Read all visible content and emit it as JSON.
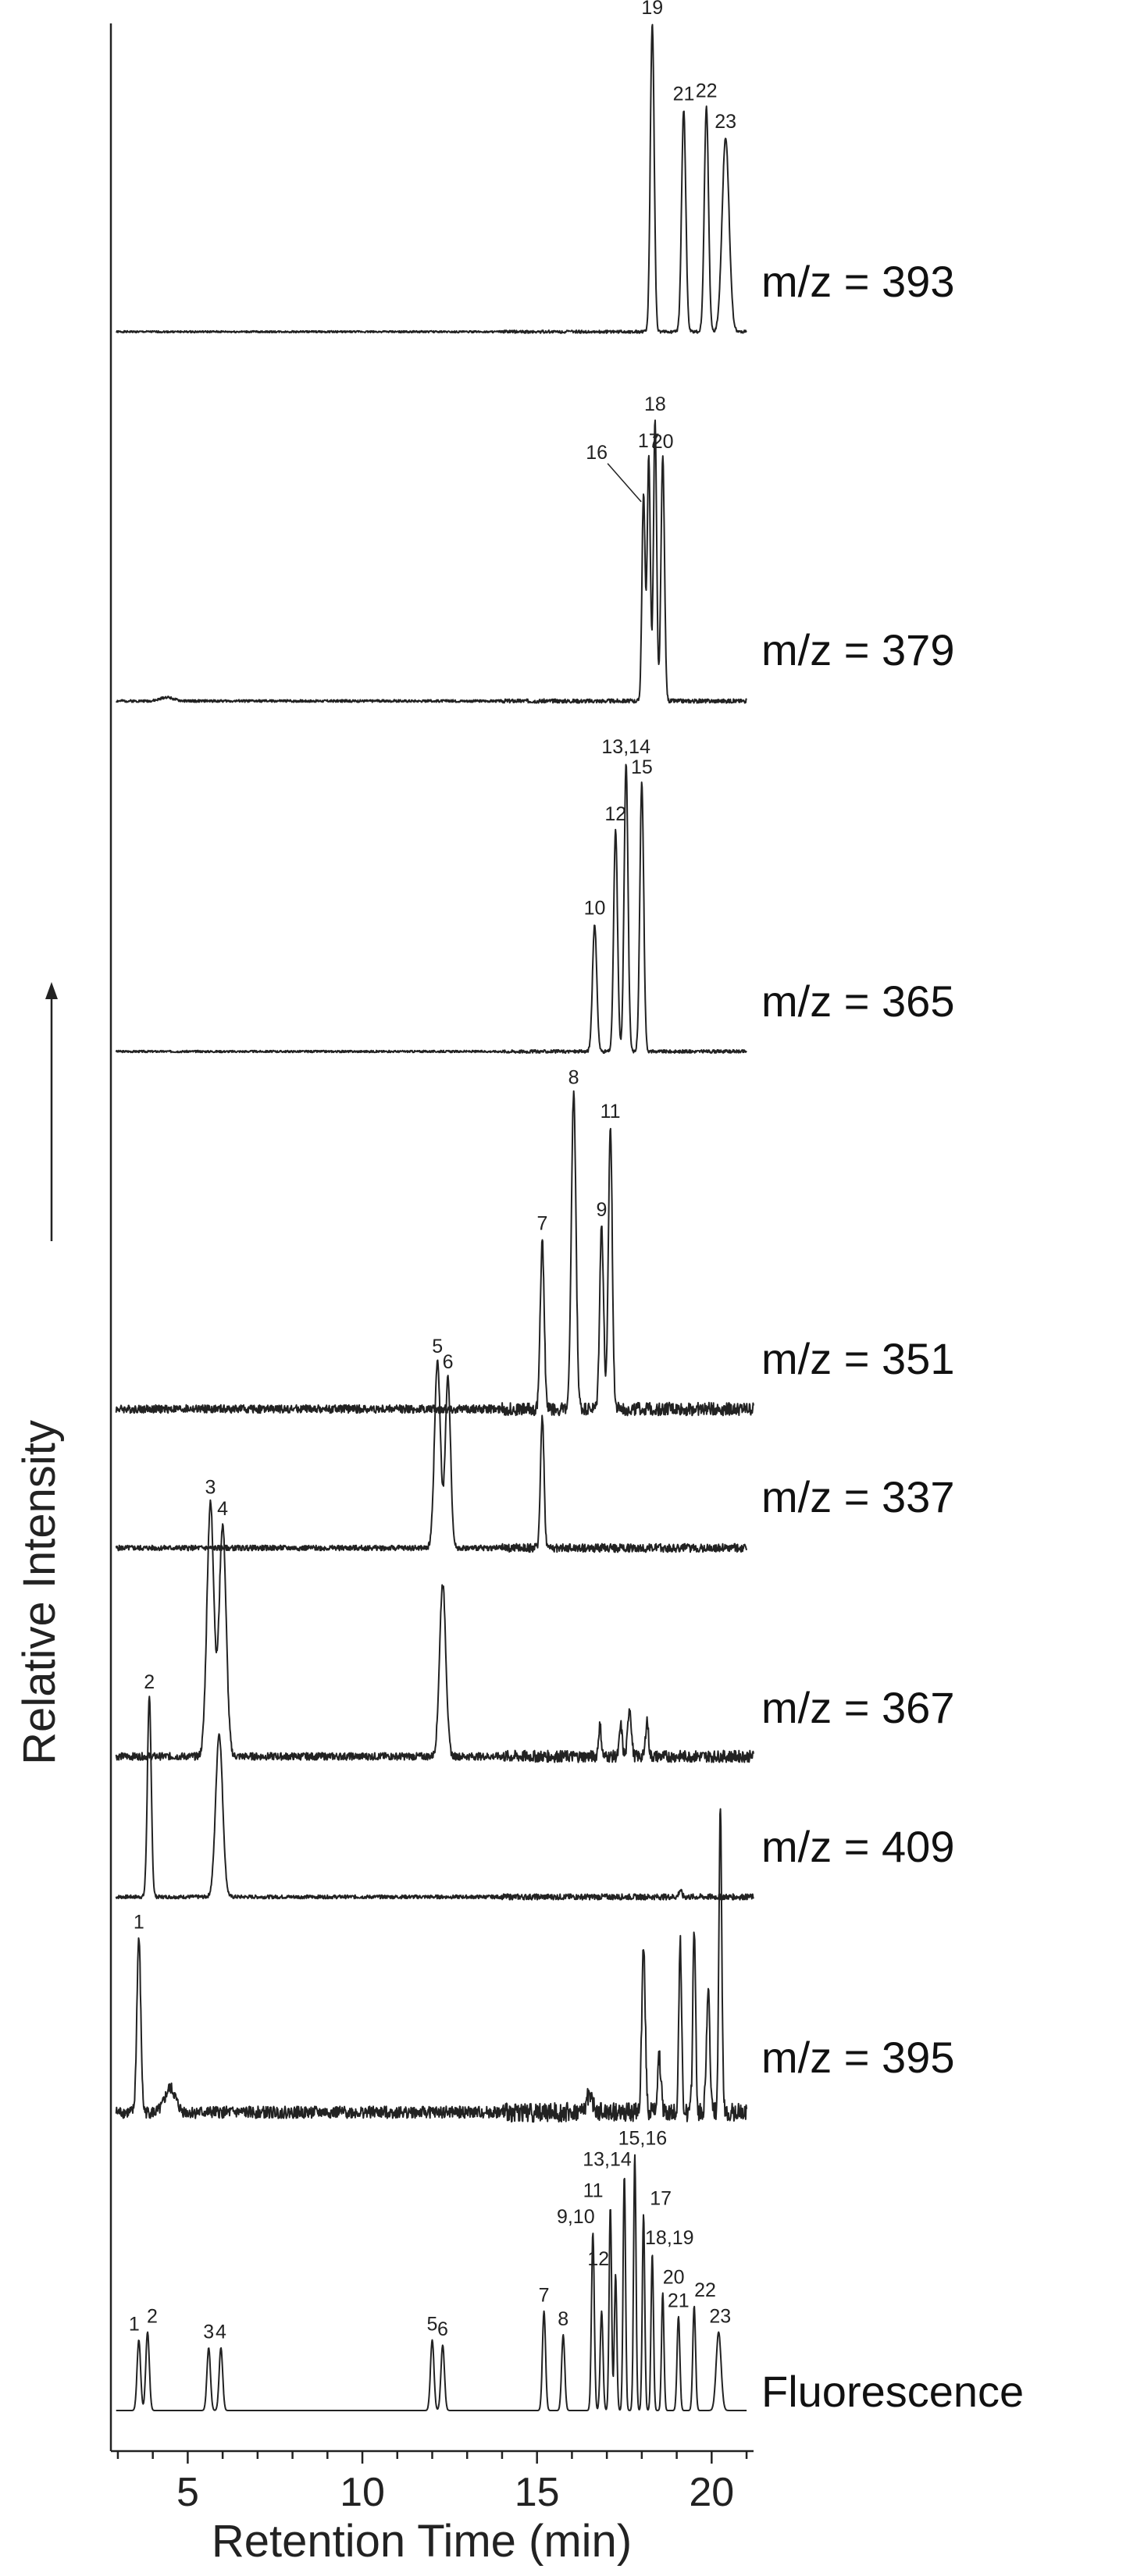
{
  "chart_data": {
    "type": "line",
    "xlabel": "Retention Time (min)",
    "ylabel": "Relative Intensity",
    "xlim": [
      2.8,
      21.2
    ],
    "x_ticks": [
      5,
      10,
      15,
      20
    ],
    "x_tick_labels": [
      "5",
      "10",
      "15",
      "20"
    ],
    "traces": [
      {
        "label": "m/z = 393",
        "noise": 0.003,
        "seed": 1,
        "x_end": 21.0,
        "peaks": [
          {
            "t": 18.3,
            "h": 1.0,
            "w": 0.055,
            "label": "19"
          },
          {
            "t": 19.2,
            "h": 0.72,
            "w": 0.06,
            "label": "21"
          },
          {
            "t": 19.85,
            "h": 0.73,
            "w": 0.06,
            "label": "22"
          },
          {
            "t": 20.4,
            "h": 0.63,
            "w": 0.1,
            "label": "23"
          }
        ]
      },
      {
        "label": "m/z = 379",
        "noise": 0.004,
        "seed": 2,
        "x_end": 21.0,
        "peaks": [
          {
            "t": 4.4,
            "h": 0.012,
            "w": 0.18,
            "label": ""
          },
          {
            "t": 18.05,
            "h": 0.66,
            "w": 0.045,
            "label": "16"
          },
          {
            "t": 18.2,
            "h": 0.78,
            "w": 0.045,
            "label": "17"
          },
          {
            "t": 18.38,
            "h": 0.9,
            "w": 0.045,
            "label": "18"
          },
          {
            "t": 18.6,
            "h": 0.78,
            "w": 0.05,
            "label": "20"
          }
        ]
      },
      {
        "label": "m/z = 365",
        "noise": 0.003,
        "seed": 3,
        "x_end": 21.0,
        "peaks": [
          {
            "t": 16.65,
            "h": 0.38,
            "w": 0.06,
            "label": "10"
          },
          {
            "t": 17.25,
            "h": 0.66,
            "w": 0.055,
            "label": "12"
          },
          {
            "t": 17.55,
            "h": 0.86,
            "w": 0.055,
            "label": "13,14"
          },
          {
            "t": 18.0,
            "h": 0.8,
            "w": 0.055,
            "label": "15"
          }
        ]
      },
      {
        "label": "m/z = 351",
        "noise": 0.012,
        "seed": 4,
        "x_end": 21.2,
        "peaks": [
          {
            "t": 15.15,
            "h": 0.5,
            "w": 0.055,
            "label": "7"
          },
          {
            "t": 16.05,
            "h": 0.93,
            "w": 0.065,
            "label": "8"
          },
          {
            "t": 16.85,
            "h": 0.54,
            "w": 0.055,
            "label": "9"
          },
          {
            "t": 17.1,
            "h": 0.83,
            "w": 0.055,
            "label": "11"
          }
        ]
      },
      {
        "label": "m/z = 337",
        "noise": 0.01,
        "seed": 5,
        "x_end": 21.0,
        "peaks": [
          {
            "t": 12.15,
            "h": 0.7,
            "w": 0.085,
            "label": "5"
          },
          {
            "t": 12.45,
            "h": 0.64,
            "w": 0.075,
            "label": "6"
          },
          {
            "t": 15.15,
            "h": 0.5,
            "w": 0.05,
            "label": ""
          }
        ]
      },
      {
        "label": "m/z = 367",
        "noise": 0.012,
        "seed": 6,
        "x_end": 21.2,
        "peaks": [
          {
            "t": 5.65,
            "h": 0.82,
            "w": 0.1,
            "label": "3"
          },
          {
            "t": 6.0,
            "h": 0.75,
            "w": 0.1,
            "label": "4"
          },
          {
            "t": 12.3,
            "h": 0.56,
            "w": 0.09,
            "label": ""
          },
          {
            "t": 16.8,
            "h": 0.1,
            "w": 0.04,
            "label": ""
          },
          {
            "t": 17.4,
            "h": 0.1,
            "w": 0.04,
            "label": ""
          },
          {
            "t": 17.65,
            "h": 0.16,
            "w": 0.05,
            "label": ""
          },
          {
            "t": 18.15,
            "h": 0.12,
            "w": 0.04,
            "label": ""
          }
        ]
      },
      {
        "label": "m/z = 409",
        "noise": 0.008,
        "seed": 7,
        "x_end": 21.2,
        "peaks": [
          {
            "t": 3.9,
            "h": 0.88,
            "w": 0.055,
            "label": "2"
          },
          {
            "t": 5.9,
            "h": 0.72,
            "w": 0.1,
            "label": ""
          },
          {
            "t": 19.1,
            "h": 0.03,
            "w": 0.04,
            "label": ""
          }
        ]
      },
      {
        "label": "m/z = 395",
        "noise": 0.02,
        "seed": 8,
        "x_end": 21.0,
        "peaks": [
          {
            "t": 3.6,
            "h": 0.58,
            "w": 0.055,
            "label": "1"
          },
          {
            "t": 4.5,
            "h": 0.08,
            "w": 0.15,
            "label": ""
          },
          {
            "t": 16.5,
            "h": 0.06,
            "w": 0.08,
            "label": ""
          },
          {
            "t": 18.05,
            "h": 0.55,
            "w": 0.05,
            "label": ""
          },
          {
            "t": 18.5,
            "h": 0.18,
            "w": 0.05,
            "label": ""
          },
          {
            "t": 19.1,
            "h": 0.56,
            "w": 0.04,
            "label": ""
          },
          {
            "t": 19.5,
            "h": 0.62,
            "w": 0.04,
            "label": ""
          },
          {
            "t": 19.9,
            "h": 0.4,
            "w": 0.05,
            "label": ""
          },
          {
            "t": 20.25,
            "h": 1.0,
            "w": 0.04,
            "label": ""
          }
        ]
      },
      {
        "label": "Fluorescence",
        "noise": 0.0,
        "seed": 9,
        "x_end": 21.0,
        "peaks": [
          {
            "t": 3.6,
            "h": 0.27,
            "w": 0.05,
            "label": "1"
          },
          {
            "t": 3.85,
            "h": 0.3,
            "w": 0.05,
            "label": "2"
          },
          {
            "t": 5.6,
            "h": 0.24,
            "w": 0.05,
            "label": "3"
          },
          {
            "t": 5.95,
            "h": 0.24,
            "w": 0.05,
            "label": "4"
          },
          {
            "t": 12.0,
            "h": 0.27,
            "w": 0.05,
            "label": "5"
          },
          {
            "t": 12.3,
            "h": 0.25,
            "w": 0.05,
            "label": "6"
          },
          {
            "t": 15.2,
            "h": 0.38,
            "w": 0.045,
            "label": "7"
          },
          {
            "t": 15.75,
            "h": 0.29,
            "w": 0.045,
            "label": "8"
          },
          {
            "t": 16.6,
            "h": 0.68,
            "w": 0.04,
            "label": "9,10"
          },
          {
            "t": 16.85,
            "h": 0.38,
            "w": 0.04,
            "label": ""
          },
          {
            "t": 17.1,
            "h": 0.78,
            "w": 0.035,
            "label": "11"
          },
          {
            "t": 17.25,
            "h": 0.52,
            "w": 0.035,
            "label": "12"
          },
          {
            "t": 17.5,
            "h": 0.9,
            "w": 0.035,
            "label": "13,14"
          },
          {
            "t": 17.8,
            "h": 0.98,
            "w": 0.035,
            "label": "15,16"
          },
          {
            "t": 18.05,
            "h": 0.75,
            "w": 0.035,
            "label": "17"
          },
          {
            "t": 18.3,
            "h": 0.6,
            "w": 0.035,
            "label": "18,19"
          },
          {
            "t": 18.6,
            "h": 0.45,
            "w": 0.035,
            "label": "20"
          },
          {
            "t": 19.05,
            "h": 0.36,
            "w": 0.04,
            "label": "21"
          },
          {
            "t": 19.5,
            "h": 0.4,
            "w": 0.04,
            "label": "22"
          },
          {
            "t": 20.2,
            "h": 0.3,
            "w": 0.07,
            "label": "23"
          }
        ]
      }
    ]
  }
}
